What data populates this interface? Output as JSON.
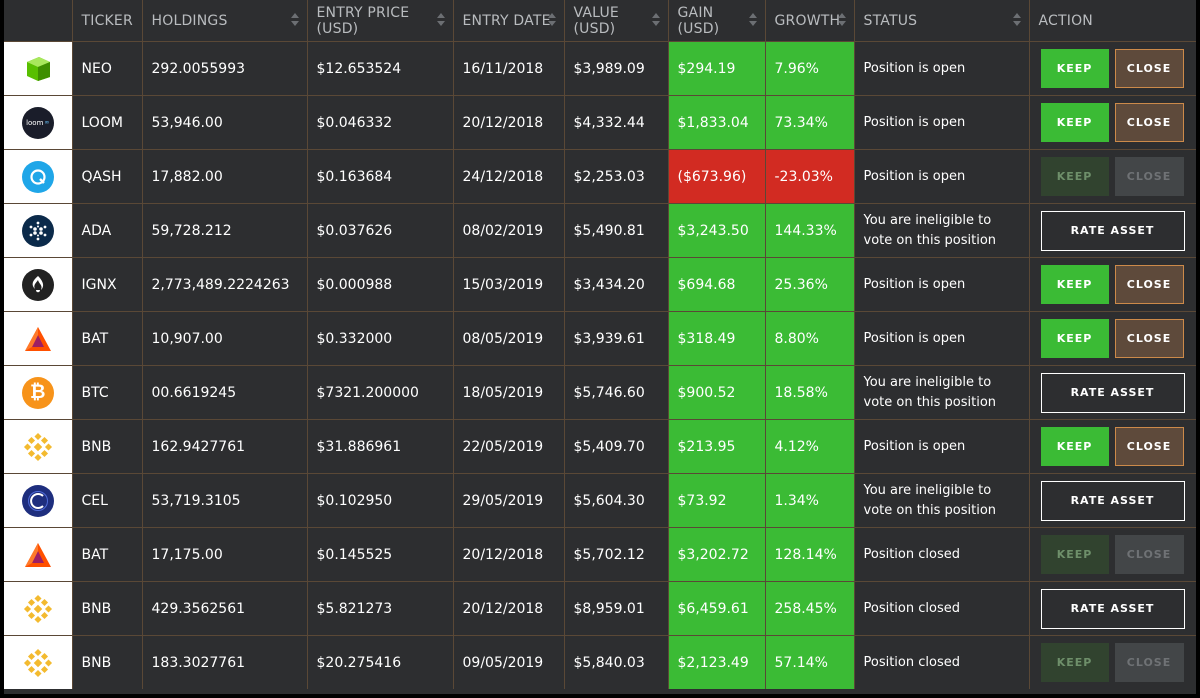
{
  "columns": [
    "TICKER",
    "HOLDINGS",
    "ENTRY PRICE (USD)",
    "ENTRY DATE",
    "VALUE (USD)",
    "GAIN (USD)",
    "GROWTH",
    "STATUS",
    "ACTION"
  ],
  "labels": {
    "keep": "KEEP",
    "close": "CLOSE",
    "rate": "RATE ASSET"
  },
  "colors": {
    "positive": "#3bbb35",
    "negative": "#d22b22",
    "background": "#2d2e30",
    "border": "#5a4836",
    "close_border": "#cc8a4a"
  },
  "rows": [
    {
      "icon": "neo-logo-icon",
      "ticker": "NEO",
      "holdings": "292.0055993",
      "entry_price": "$12.653524",
      "entry_date": "16/11/2018",
      "value": "$3,989.09",
      "gain": "$294.19",
      "growth": "7.96%",
      "trend": "positive",
      "status": "Position is open",
      "action": "keep-close"
    },
    {
      "icon": "loom-logo-icon",
      "logo_text": "loom",
      "ticker": "LOOM",
      "holdings": "53,946.00",
      "entry_price": "$0.046332",
      "entry_date": "20/12/2018",
      "value": "$4,332.44",
      "gain": "$1,833.04",
      "growth": "73.34%",
      "trend": "positive",
      "status": "Position is open",
      "action": "keep-close"
    },
    {
      "icon": "qash-logo-icon",
      "ticker": "QASH",
      "holdings": "17,882.00",
      "entry_price": "$0.163684",
      "entry_date": "24/12/2018",
      "value": "$2,253.03",
      "gain": "($673.96)",
      "growth": "-23.03%",
      "trend": "negative",
      "status": "Position is open",
      "action": "keep-close-disabled"
    },
    {
      "icon": "ada-logo-icon",
      "ticker": "ADA",
      "holdings": "59,728.212",
      "entry_price": "$0.037626",
      "entry_date": "08/02/2019",
      "value": "$5,490.81",
      "gain": "$3,243.50",
      "growth": "144.33%",
      "trend": "positive",
      "status": "You are ineligible to vote on this position",
      "action": "rate"
    },
    {
      "icon": "ignx-logo-icon",
      "ticker": "IGNX",
      "holdings": "2,773,489.2224263",
      "entry_price": "$0.000988",
      "entry_date": "15/03/2019",
      "value": "$3,434.20",
      "gain": "$694.68",
      "growth": "25.36%",
      "trend": "positive",
      "status": "Position is open",
      "action": "keep-close"
    },
    {
      "icon": "bat-logo-icon",
      "ticker": "BAT",
      "holdings": "10,907.00",
      "entry_price": "$0.332000",
      "entry_date": "08/05/2019",
      "value": "$3,939.61",
      "gain": "$318.49",
      "growth": "8.80%",
      "trend": "positive",
      "status": "Position is open",
      "action": "keep-close"
    },
    {
      "icon": "btc-logo-icon",
      "ticker": "BTC",
      "holdings": "00.6619245",
      "entry_price": "$7321.200000",
      "entry_date": "18/05/2019",
      "value": "$5,746.60",
      "gain": "$900.52",
      "growth": "18.58%",
      "trend": "positive",
      "status": "You are ineligible to vote on this position",
      "action": "rate"
    },
    {
      "icon": "bnb-logo-icon",
      "ticker": "BNB",
      "holdings": "162.9427761",
      "entry_price": "$31.886961",
      "entry_date": "22/05/2019",
      "value": "$5,409.70",
      "gain": "$213.95",
      "growth": "4.12%",
      "trend": "positive",
      "status": "Position is open",
      "action": "keep-close"
    },
    {
      "icon": "cel-logo-icon",
      "ticker": "CEL",
      "holdings": "53,719.3105",
      "entry_price": "$0.102950",
      "entry_date": "29/05/2019",
      "value": "$5,604.30",
      "gain": "$73.92",
      "growth": "1.34%",
      "trend": "positive",
      "status": "You are ineligible to vote on this position",
      "action": "rate"
    },
    {
      "icon": "bat-logo-icon",
      "ticker": "BAT",
      "holdings": "17,175.00",
      "entry_price": "$0.145525",
      "entry_date": "20/12/2018",
      "value": "$5,702.12",
      "gain": "$3,202.72",
      "growth": "128.14%",
      "trend": "positive",
      "status": "Position closed",
      "action": "keep-close-disabled"
    },
    {
      "icon": "bnb-logo-icon",
      "ticker": "BNB",
      "holdings": "429.3562561",
      "entry_price": "$5.821273",
      "entry_date": "20/12/2018",
      "value": "$8,959.01",
      "gain": "$6,459.61",
      "growth": "258.45%",
      "trend": "positive",
      "status": "Position closed",
      "action": "rate"
    },
    {
      "icon": "bnb-logo-icon",
      "ticker": "BNB",
      "holdings": "183.3027761",
      "entry_price": "$20.275416",
      "entry_date": "09/05/2019",
      "value": "$5,840.03",
      "gain": "$2,123.49",
      "growth": "57.14%",
      "trend": "positive",
      "status": "Position closed",
      "action": "keep-close-disabled"
    }
  ]
}
